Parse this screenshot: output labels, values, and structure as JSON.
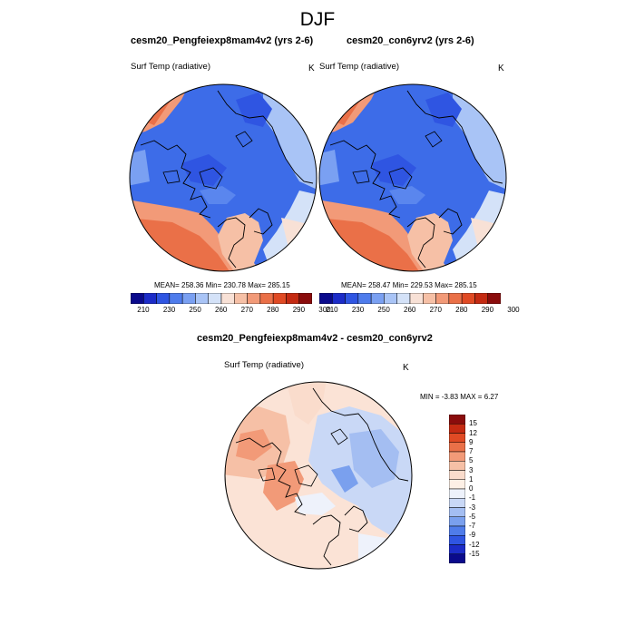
{
  "title": "DJF",
  "panels": [
    {
      "title": "cesm20_Pengfeiexp8mam4v2 (yrs 2-6)",
      "variable": "Surf Temp (radiative)",
      "units": "K",
      "stats": "MEAN= 258.36  Min= 230.78  Max= 285.15"
    },
    {
      "title": "cesm20_con6yrv2 (yrs 2-6)",
      "variable": "Surf Temp (radiative)",
      "units": "K",
      "stats": "MEAN= 258.47  Min= 229.53  Max= 285.15"
    },
    {
      "title": "cesm20_Pengfeiexp8mam4v2 - cesm20_con6yrv2",
      "variable": "Surf Temp (radiative)",
      "units": "K",
      "stats": "MIN =  -3.83 MAX =   6.27"
    }
  ],
  "colorbar_abs": {
    "labels": [
      "210",
      "230",
      "250",
      "260",
      "270",
      "280",
      "290",
      "300"
    ],
    "colors": [
      "#0a0a8c",
      "#1c2cc8",
      "#2f55e2",
      "#4f7cec",
      "#7aa0f2",
      "#a9c4f6",
      "#d4e2f8",
      "#f8e1d6",
      "#f6c0a6",
      "#f29a78",
      "#ea7048",
      "#e04a24",
      "#c42a12",
      "#8a0c0c"
    ]
  },
  "colorbar_diff": {
    "labels": [
      "15",
      "12",
      "9",
      "7",
      "5",
      "3",
      "1",
      "0",
      "-1",
      "-3",
      "-5",
      "-7",
      "-9",
      "-12",
      "-15"
    ],
    "colors": [
      "#8a0c0c",
      "#c42a12",
      "#e04a24",
      "#ea7048",
      "#f29a78",
      "#f6c0a6",
      "#fadccc",
      "#fdf0e6",
      "#eef2fb",
      "#c9d8f6",
      "#a4bef2",
      "#7aa0ee",
      "#4f7cea",
      "#2f55e2",
      "#1c2cc8",
      "#0a0a8c"
    ]
  }
}
